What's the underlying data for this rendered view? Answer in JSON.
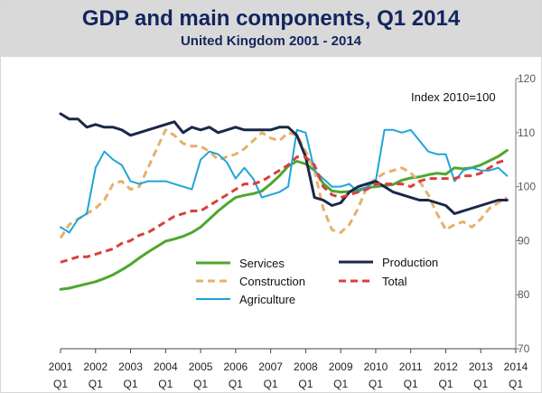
{
  "title": "GDP and main components, Q1 2014",
  "subtitle": "United Kingdom 2001 - 2014",
  "chart_data": {
    "type": "line",
    "annotation": "Index 2010=100",
    "ylim": [
      70,
      120
    ],
    "yticks": [
      70,
      80,
      90,
      100,
      110,
      120
    ],
    "y_axis_side": "right",
    "grid": false,
    "legend_placement": "bottom-center",
    "x_tick_labels": [
      {
        "year": "2001",
        "quarter": "Q1"
      },
      {
        "year": "2002",
        "quarter": "Q1"
      },
      {
        "year": "2003",
        "quarter": "Q1"
      },
      {
        "year": "2004",
        "quarter": "Q1"
      },
      {
        "year": "2005",
        "quarter": "Q1"
      },
      {
        "year": "2006",
        "quarter": "Q1"
      },
      {
        "year": "2007",
        "quarter": "Q1"
      },
      {
        "year": "2008",
        "quarter": "Q1"
      },
      {
        "year": "2009",
        "quarter": "Q1"
      },
      {
        "year": "2010",
        "quarter": "Q1"
      },
      {
        "year": "2011",
        "quarter": "Q1"
      },
      {
        "year": "2012",
        "quarter": "Q1"
      },
      {
        "year": "2013",
        "quarter": "Q1"
      },
      {
        "year": "2014",
        "quarter": "Q1"
      }
    ],
    "series": [
      {
        "name": "Services",
        "color": "#4ea72e",
        "dash": "solid",
        "width": 3,
        "values": [
          81.0,
          81.2,
          81.6,
          82.0,
          82.4,
          83.0,
          83.7,
          84.6,
          85.6,
          86.8,
          87.9,
          88.9,
          89.9,
          90.3,
          90.8,
          91.5,
          92.5,
          94.0,
          95.5,
          96.8,
          98.0,
          98.4,
          98.7,
          99.2,
          100.5,
          102.0,
          103.8,
          104.7,
          104.2,
          103.0,
          100.6,
          99.2,
          99.0,
          99.1,
          99.4,
          99.8,
          100.0,
          100.2,
          100.4,
          101.2,
          101.6,
          101.8,
          102.2,
          102.5,
          102.3,
          103.5,
          103.3,
          103.5,
          104.0,
          104.8,
          105.6,
          106.7
        ]
      },
      {
        "name": "Construction",
        "color": "#e6b16b",
        "dash": "dashed",
        "width": 3,
        "values": [
          90.5,
          93.0,
          94.0,
          95.0,
          96.0,
          97.5,
          100.5,
          101.0,
          99.5,
          100.0,
          103.5,
          107.0,
          110.5,
          109.5,
          108.0,
          107.5,
          107.5,
          106.5,
          105.0,
          105.5,
          106.0,
          107.0,
          108.5,
          110.0,
          109.0,
          108.5,
          110.0,
          109.5,
          106.5,
          103.0,
          96.0,
          92.0,
          91.5,
          93.0,
          96.0,
          100.0,
          101.5,
          102.5,
          103.0,
          103.5,
          102.5,
          101.0,
          98.5,
          95.0,
          92.0,
          93.0,
          93.5,
          92.5,
          94.0,
          96.0,
          97.0,
          98.0
        ]
      },
      {
        "name": "Agriculture",
        "color": "#1fa4d8",
        "dash": "solid",
        "width": 2,
        "values": [
          92.5,
          91.5,
          94.0,
          95.0,
          103.5,
          106.5,
          105.0,
          104.0,
          101.0,
          100.5,
          101.0,
          101.0,
          101.0,
          100.5,
          100.0,
          99.5,
          105.0,
          106.5,
          106.0,
          104.5,
          101.5,
          103.5,
          101.5,
          98.0,
          98.5,
          99.0,
          100.0,
          110.5,
          110.0,
          103.0,
          101.5,
          100.0,
          100.0,
          100.5,
          99.0,
          100.0,
          101.0,
          110.5,
          110.5,
          110.0,
          110.5,
          108.5,
          106.5,
          106.0,
          106.0,
          101.0,
          103.0,
          103.5,
          103.0,
          103.0,
          103.5,
          102.0
        ]
      },
      {
        "name": "Production",
        "color": "#1a2848",
        "dash": "solid",
        "width": 3,
        "values": [
          113.5,
          112.5,
          112.5,
          111.0,
          111.5,
          111.0,
          111.0,
          110.5,
          109.5,
          110.0,
          110.5,
          111.0,
          111.5,
          112.0,
          110.0,
          111.0,
          110.5,
          111.0,
          110.0,
          110.5,
          111.0,
          110.5,
          110.5,
          110.5,
          110.5,
          111.0,
          111.0,
          109.5,
          105.5,
          98.0,
          97.5,
          96.5,
          97.0,
          99.0,
          100.0,
          100.5,
          101.0,
          100.0,
          99.0,
          98.5,
          98.0,
          97.5,
          97.5,
          97.0,
          96.5,
          95.0,
          95.5,
          96.0,
          96.5,
          97.0,
          97.5,
          97.5
        ]
      },
      {
        "name": "Total",
        "color": "#d9403b",
        "dash": "dashed",
        "width": 3,
        "values": [
          86.0,
          86.5,
          87.0,
          87.0,
          87.5,
          88.0,
          88.5,
          89.5,
          90.0,
          91.0,
          91.5,
          92.5,
          93.5,
          94.5,
          95.0,
          95.5,
          95.5,
          96.5,
          97.5,
          98.5,
          99.5,
          100.5,
          100.5,
          101.0,
          102.0,
          103.0,
          104.0,
          105.5,
          105.5,
          104.0,
          100.0,
          98.5,
          98.0,
          98.5,
          99.0,
          99.5,
          100.5,
          100.5,
          100.5,
          100.5,
          100.0,
          101.0,
          101.5,
          101.5,
          101.5,
          101.5,
          102.0,
          102.0,
          102.5,
          103.5,
          104.5,
          105.0
        ]
      }
    ]
  }
}
